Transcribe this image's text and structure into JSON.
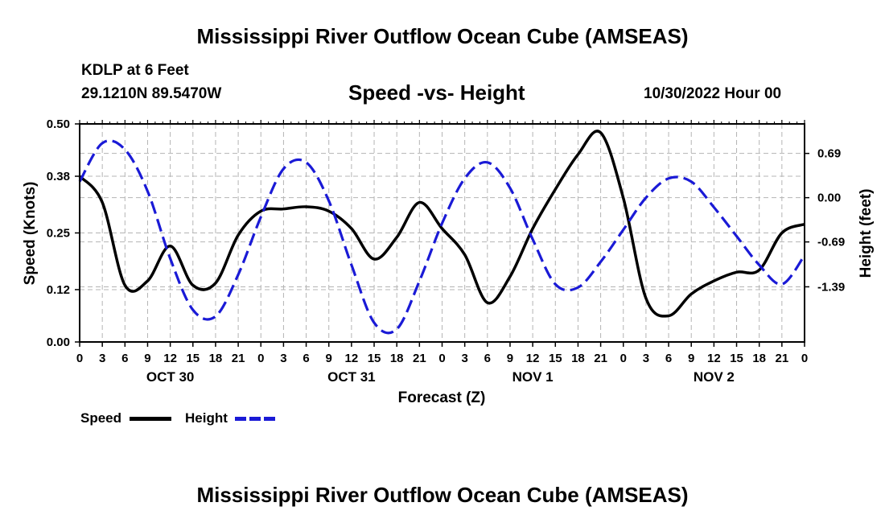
{
  "header": {
    "title": "Mississippi River Outflow Ocean Cube (AMSEAS)",
    "station": "KDLP at 6 Feet",
    "coords": "29.1210N  89.5470W",
    "subtitle": "Speed -vs- Height",
    "datetime": "10/30/2022 Hour 00"
  },
  "footer": {
    "title": "Mississippi River Outflow Ocean Cube (AMSEAS)"
  },
  "legend": {
    "speed_label": "Speed",
    "height_label": "Height"
  },
  "colors": {
    "speed": "#000000",
    "height": "#1a1ad6",
    "grid": "#b4b4b4"
  },
  "chart_data": {
    "type": "line",
    "xlabel": "Forecast (Z)",
    "ylabel": "Speed (Knots)",
    "y2label": "Height (feet)",
    "xlim": [
      0,
      96
    ],
    "ylim": [
      0,
      0.5
    ],
    "y2lim": [
      -2.25,
      1.15
    ],
    "y_ticks": [
      0.0,
      0.12,
      0.25,
      0.38,
      0.5
    ],
    "y_tick_labels": [
      "0.00",
      "0.12",
      "0.25",
      "0.38",
      "0.50"
    ],
    "y2_ticks": [
      0.69,
      0.0,
      -0.69,
      -1.39
    ],
    "y2_tick_labels": [
      "0.69",
      "0.00",
      "-0.69",
      "-1.39"
    ],
    "x_tick_labels": [
      "0",
      "3",
      "6",
      "9",
      "12",
      "15",
      "18",
      "21",
      "0",
      "3",
      "6",
      "9",
      "12",
      "15",
      "18",
      "21",
      "0",
      "3",
      "6",
      "9",
      "12",
      "15",
      "18",
      "21",
      "0",
      "3",
      "6",
      "9",
      "12",
      "15",
      "18",
      "21",
      "0"
    ],
    "date_labels": [
      {
        "label": "OCT 30",
        "x": 12
      },
      {
        "label": "OCT 31",
        "x": 36
      },
      {
        "label": "NOV 1",
        "x": 60
      },
      {
        "label": "NOV 2",
        "x": 84
      }
    ],
    "series": [
      {
        "name": "Speed",
        "axis": "left",
        "style": "solid",
        "x": [
          0,
          3,
          6,
          9,
          12,
          15,
          18,
          21,
          24,
          27,
          30,
          33,
          36,
          39,
          42,
          45,
          48,
          51,
          54,
          57,
          60,
          63,
          66,
          69,
          72,
          75,
          78,
          81,
          84,
          87,
          90,
          93,
          96
        ],
        "values": [
          0.38,
          0.32,
          0.13,
          0.14,
          0.22,
          0.13,
          0.135,
          0.245,
          0.3,
          0.305,
          0.31,
          0.3,
          0.26,
          0.19,
          0.24,
          0.32,
          0.26,
          0.2,
          0.09,
          0.15,
          0.26,
          0.35,
          0.43,
          0.48,
          0.33,
          0.1,
          0.06,
          0.11,
          0.14,
          0.16,
          0.165,
          0.25,
          0.27
        ]
      },
      {
        "name": "Height",
        "axis": "right",
        "style": "dashed",
        "x": [
          0,
          3,
          6,
          9,
          12,
          15,
          18,
          21,
          24,
          27,
          30,
          33,
          36,
          39,
          42,
          45,
          48,
          51,
          54,
          57,
          60,
          63,
          66,
          69,
          72,
          75,
          78,
          81,
          84,
          87,
          90,
          93,
          96
        ],
        "values": [
          0.25,
          0.85,
          0.75,
          0.1,
          -0.95,
          -1.75,
          -1.85,
          -1.2,
          -0.3,
          0.45,
          0.55,
          -0.05,
          -1.05,
          -1.95,
          -2.05,
          -1.3,
          -0.4,
          0.3,
          0.55,
          0.15,
          -0.65,
          -1.35,
          -1.4,
          -1.0,
          -0.5,
          0.0,
          0.3,
          0.25,
          -0.15,
          -0.6,
          -1.05,
          -1.35,
          -0.9
        ]
      }
    ]
  }
}
